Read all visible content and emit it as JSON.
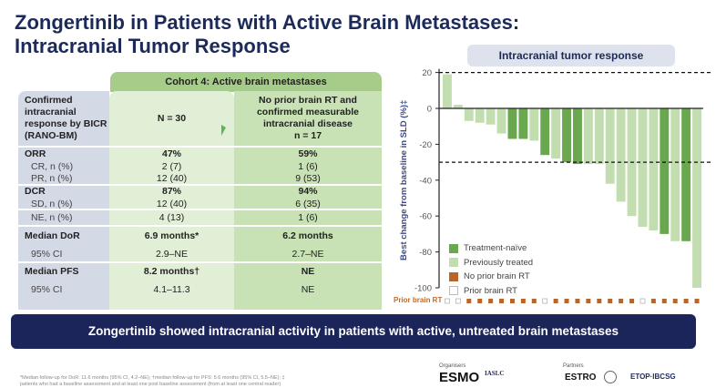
{
  "title_line1": "Zongertinib in Patients with Active Brain Metastases:",
  "title_line2": "Intracranial Tumor Response",
  "table": {
    "cohort_header": "Cohort 4: Active brain metastases",
    "row_header": "Confirmed intracranial response by BICR (RANO-BM)",
    "col_a_header": "N = 30",
    "col_b_header_line1": "No prior brain RT and",
    "col_b_header_line2": "confirmed measurable",
    "col_b_header_line3": "intracranial disease",
    "col_b_header_line4": "n = 17",
    "rows": [
      {
        "label": "ORR",
        "a": "47%",
        "b": "59%",
        "bold": true
      },
      {
        "label": "CR, n (%)",
        "a": "2 (7)",
        "b": "1 (6)",
        "bold": false
      },
      {
        "label": "PR, n (%)",
        "a": "12 (40)",
        "b": "9 (53)",
        "bold": false
      },
      {
        "label": "DCR",
        "a": "87%",
        "b": "94%",
        "bold": true
      },
      {
        "label": "SD, n (%)",
        "a": "12 (40)",
        "b": "6 (35)",
        "bold": false
      },
      {
        "label": "NE, n (%)",
        "a": "4 (13)",
        "b": "1 (6)",
        "bold": false
      },
      {
        "label": "Median DoR",
        "a": "6.9 months*",
        "b": "6.2 months",
        "bold": true
      },
      {
        "label": "95% CI",
        "a": "2.9–NE",
        "b": "2.7–NE",
        "bold": false
      },
      {
        "label": "Median PFS",
        "a": "8.2 months†",
        "b": "NE",
        "bold": true
      },
      {
        "label": "95% CI",
        "a": "4.1–11.3",
        "b": "NE",
        "bold": false
      }
    ]
  },
  "chart_data": {
    "type": "bar",
    "title": "Intracranial tumor response",
    "ylabel": "Best change from baseline in SLD (%)‡",
    "xlabel": "",
    "ylim": [
      -100,
      20
    ],
    "yticks": [
      20,
      0,
      -20,
      -40,
      -60,
      -80,
      -100
    ],
    "reference_lines": [
      20,
      -30
    ],
    "values": [
      19,
      2,
      -7,
      -8,
      -9,
      -14,
      -17,
      -17,
      -18,
      -26,
      -28,
      -30,
      -31,
      -31,
      -31,
      -42,
      -52,
      -60,
      -66,
      -68,
      -70,
      -74,
      -74,
      -100
    ],
    "treatment_naive": [
      false,
      false,
      false,
      false,
      false,
      false,
      true,
      true,
      false,
      true,
      false,
      true,
      true,
      false,
      false,
      false,
      false,
      false,
      false,
      false,
      true,
      false,
      true,
      false
    ],
    "prior_brain_rt": [
      true,
      true,
      false,
      false,
      false,
      false,
      false,
      false,
      false,
      true,
      false,
      false,
      false,
      false,
      false,
      false,
      false,
      false,
      true,
      false,
      false,
      false,
      false,
      false
    ],
    "legend": [
      {
        "label": "Treatment-naïve",
        "color": "#6aa84f"
      },
      {
        "label": "Previously treated",
        "color": "#c2deb0"
      },
      {
        "label": "No prior brain RT",
        "color": "#b8652a"
      },
      {
        "label": "Prior brain RT",
        "color": "#ffffff"
      }
    ],
    "rt_row_label": "Prior brain RT"
  },
  "banner": "Zongertinib showed intracranial activity in patients with active, untreated brain metastases",
  "footnote_line1": "*Median follow-up for DoR: 11.6 months (95% CI, 4.2–NE); †median follow-up for PFS: 5.6 months (95% CI, 5.5–NE); ‡",
  "footnote_line2": "patients who had a baseline assessment and at least one post baseline assessment (from at least one central reader)",
  "footer": {
    "organisers_label": "Organisers",
    "partners_label": "Partners",
    "logo_esmo": "ESMO",
    "logo_iaslc": "IASLC",
    "logo_estro": "ESTRO",
    "logo_etop": "ETOP·IBCSG"
  },
  "colors": {
    "navy": "#1b2559",
    "dark_green": "#6aa84f",
    "light_green": "#c2deb0",
    "rt_orange": "#b8652a"
  }
}
